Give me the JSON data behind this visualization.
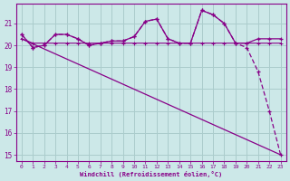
{
  "bg_color": "#cce8e8",
  "grid_color": "#aacccc",
  "line_color": "#880088",
  "xlabel": "Windchill (Refroidissement éolien,°C)",
  "hours": [
    0,
    1,
    2,
    3,
    4,
    5,
    6,
    7,
    8,
    9,
    10,
    11,
    12,
    13,
    14,
    15,
    16,
    17,
    18,
    19,
    20,
    21,
    22,
    23
  ],
  "temp_flat": [
    20.3,
    20.1,
    20.1,
    20.1,
    20.1,
    20.1,
    20.1,
    20.1,
    20.1,
    20.1,
    20.1,
    20.1,
    20.1,
    20.1,
    20.1,
    20.1,
    20.1,
    20.1,
    20.1,
    20.1,
    20.1,
    20.1,
    20.1,
    20.1
  ],
  "windchill_marked": [
    20.5,
    19.9,
    20.0,
    20.5,
    20.5,
    20.3,
    20.0,
    20.1,
    20.2,
    20.2,
    20.4,
    21.1,
    21.2,
    20.3,
    20.1,
    20.1,
    21.6,
    21.4,
    21.0,
    20.1,
    20.1,
    20.3,
    20.3,
    20.3
  ],
  "windchill_drop": [
    20.5,
    19.9,
    20.0,
    20.5,
    20.5,
    20.3,
    20.0,
    20.1,
    20.2,
    20.2,
    20.4,
    21.1,
    21.2,
    20.3,
    20.1,
    20.1,
    21.6,
    21.4,
    21.0,
    20.1,
    19.9,
    18.8,
    17.0,
    15.0
  ],
  "decline_x": [
    0,
    23
  ],
  "decline_y": [
    20.3,
    15.0
  ],
  "ylim": [
    14.7,
    21.9
  ],
  "xlim": [
    -0.5,
    23.5
  ],
  "yticks": [
    15,
    16,
    17,
    18,
    19,
    20,
    21
  ]
}
